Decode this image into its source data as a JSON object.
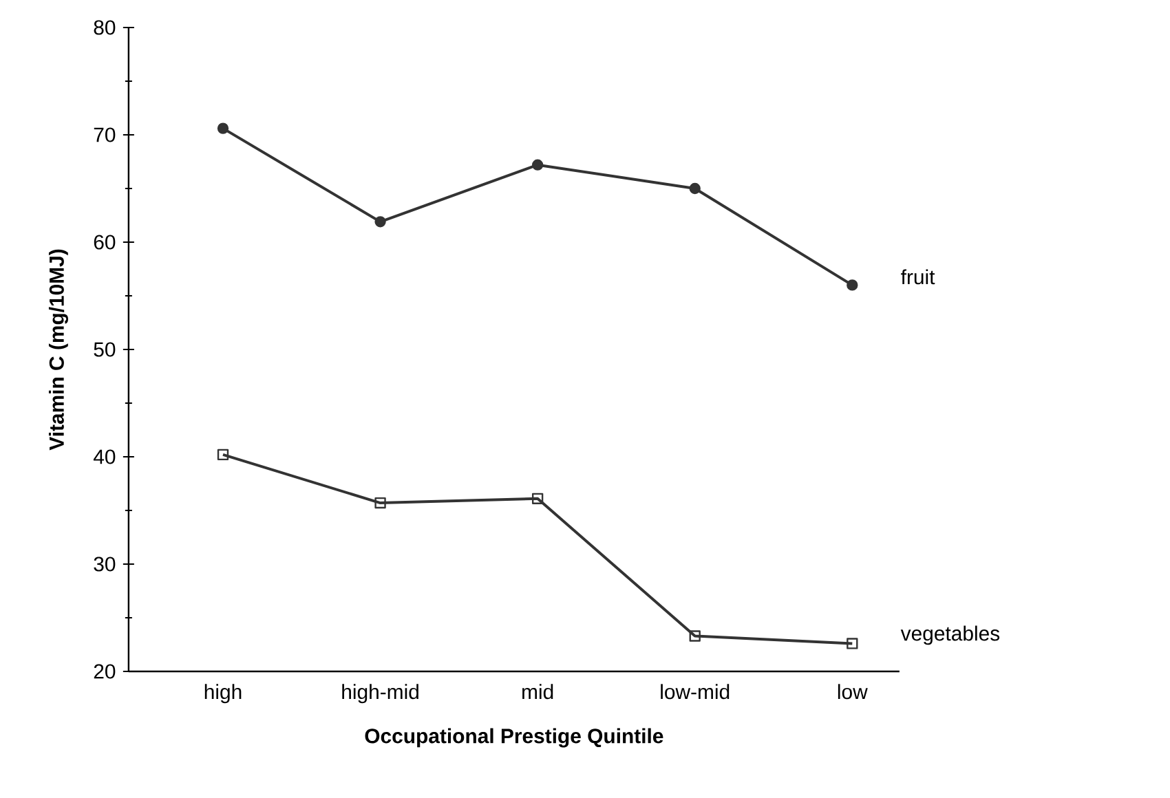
{
  "chart_data": {
    "type": "line",
    "xlabel": "Occupational Prestige Quintile",
    "ylabel": "Vitamin C (mg/10MJ)",
    "categories": [
      "high",
      "high-mid",
      "mid",
      "low-mid",
      "low"
    ],
    "series": [
      {
        "name": "fruit",
        "color": "#333333",
        "marker": "circle",
        "values": [
          70.6,
          61.9,
          67.2,
          65.0,
          56.0
        ]
      },
      {
        "name": "vegetables",
        "color": "#333333",
        "marker": "square",
        "values": [
          40.2,
          35.7,
          36.1,
          23.3,
          22.6
        ]
      }
    ],
    "ylim": [
      20,
      80
    ],
    "yticks": [
      20,
      30,
      40,
      50,
      60,
      70,
      80
    ],
    "grid": false,
    "line_style": "solid"
  }
}
